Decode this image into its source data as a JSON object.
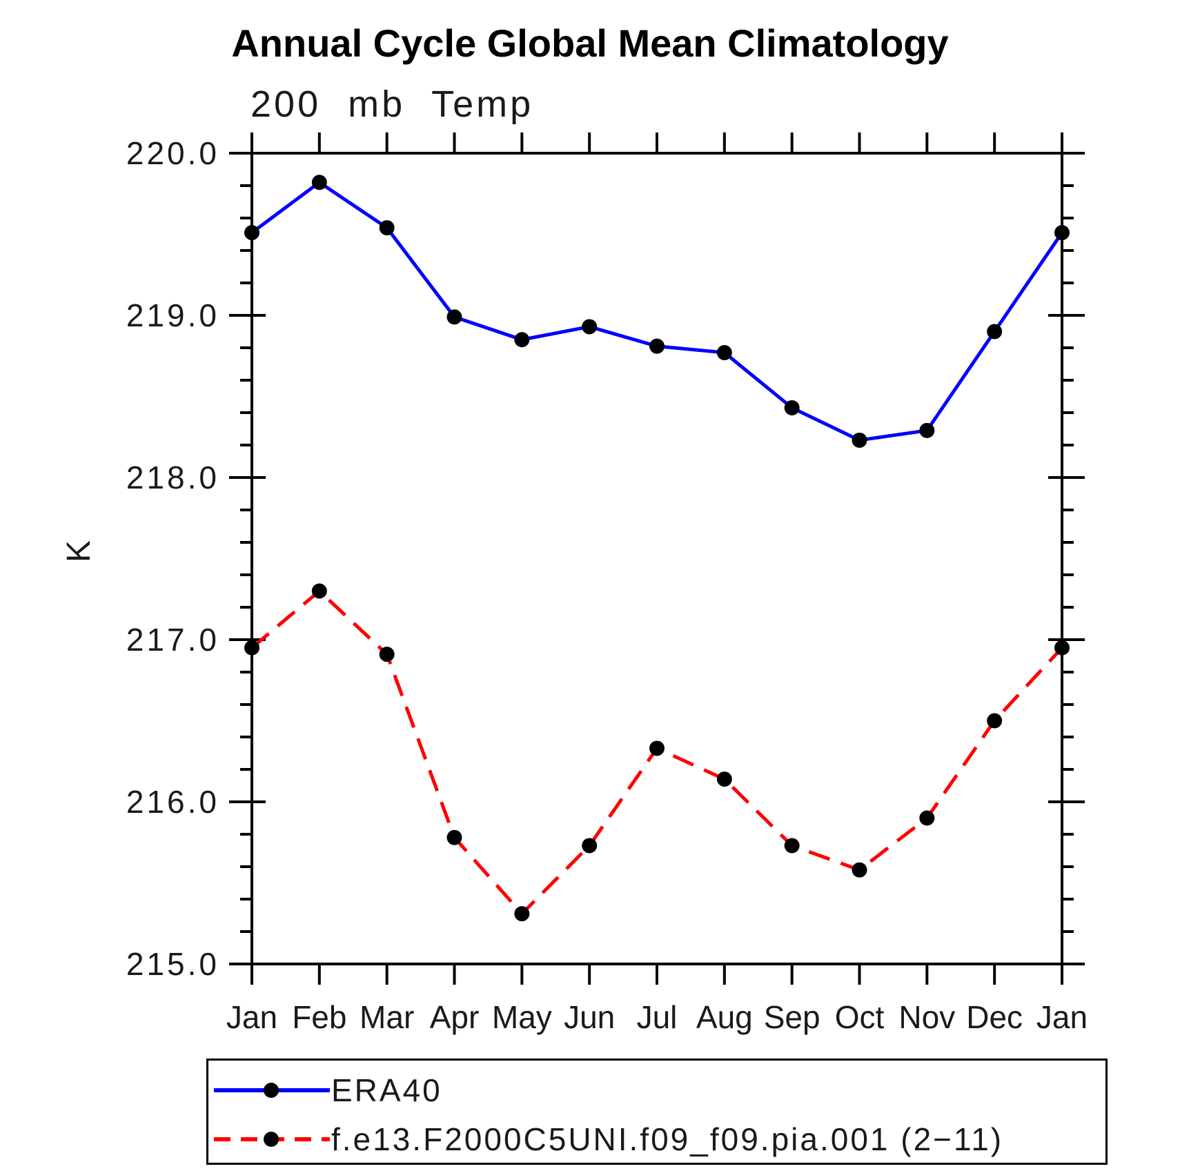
{
  "page": {
    "background": "#ffffff",
    "text_color": "#000000"
  },
  "chart_data": {
    "type": "line",
    "title": "Annual Cycle Global Mean Climatology",
    "subtitle": "200 mb Temp",
    "ylabel": "K",
    "xlabel": "",
    "categories": [
      "Jan",
      "Feb",
      "Mar",
      "Apr",
      "May",
      "Jun",
      "Jul",
      "Aug",
      "Sep",
      "Oct",
      "Nov",
      "Dec",
      "Jan"
    ],
    "ylim": [
      215.0,
      220.0
    ],
    "yticks": [
      220.0,
      219.0,
      218.0,
      217.0,
      216.0,
      215.0
    ],
    "ytick_labels": [
      "220.0",
      "219.0",
      "218.0",
      "217.0",
      "216.0",
      "215.0"
    ],
    "y_minor_tick_interval": 0.2,
    "grid": false,
    "frame": "box-with-outward-ticks",
    "legend_position": "bottom-left-box",
    "series": [
      {
        "name": "ERA40",
        "color": "#0000ff",
        "line_style": "solid",
        "marker": "circle",
        "marker_color": "#000000",
        "values": [
          219.51,
          219.82,
          219.54,
          218.99,
          218.85,
          218.93,
          218.81,
          218.77,
          218.43,
          218.23,
          218.29,
          218.9,
          219.51
        ]
      },
      {
        "name": "f.e13.F2000C5UNI.f09_f09.pia.001 (2−11)",
        "color": "#ff0000",
        "line_style": "dashed",
        "marker": "circle",
        "marker_color": "#000000",
        "values": [
          216.95,
          217.3,
          216.91,
          215.78,
          215.31,
          215.73,
          216.33,
          216.14,
          215.73,
          215.58,
          215.9,
          216.5,
          216.95
        ]
      }
    ]
  }
}
